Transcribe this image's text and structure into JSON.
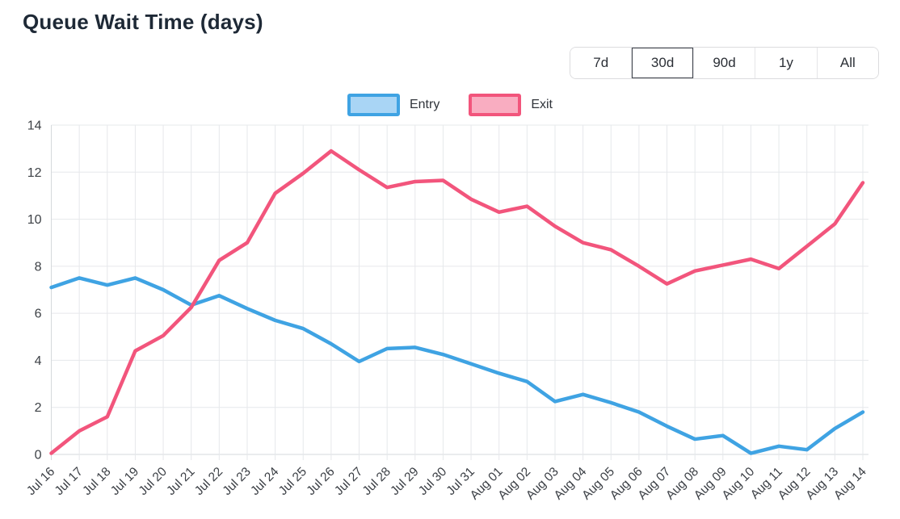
{
  "header": {
    "title": "Queue Wait Time (days)"
  },
  "controls": {
    "ranges": [
      {
        "label": "7d",
        "selected": false
      },
      {
        "label": "30d",
        "selected": true
      },
      {
        "label": "90d",
        "selected": false
      },
      {
        "label": "1y",
        "selected": false
      },
      {
        "label": "All",
        "selected": false
      }
    ]
  },
  "chart_data": {
    "type": "line",
    "title": "Queue Wait Time (days)",
    "xlabel": "",
    "ylabel": "",
    "ylim": [
      0,
      14
    ],
    "yticks": [
      0,
      2,
      4,
      6,
      8,
      10,
      12,
      14
    ],
    "grid": true,
    "legend_position": "top",
    "categories": [
      "Jul 16",
      "Jul 17",
      "Jul 18",
      "Jul 19",
      "Jul 20",
      "Jul 21",
      "Jul 22",
      "Jul 23",
      "Jul 24",
      "Jul 25",
      "Jul 26",
      "Jul 27",
      "Jul 28",
      "Jul 29",
      "Jul 30",
      "Jul 31",
      "Aug 01",
      "Aug 02",
      "Aug 03",
      "Aug 04",
      "Aug 05",
      "Aug 06",
      "Aug 07",
      "Aug 08",
      "Aug 09",
      "Aug 10",
      "Aug 11",
      "Aug 12",
      "Aug 13",
      "Aug 14"
    ],
    "series": [
      {
        "name": "Entry",
        "color": "#3fa3e3",
        "fill": "#a9d5f5",
        "values": [
          7.1,
          7.5,
          7.2,
          7.5,
          7.0,
          6.35,
          6.75,
          6.2,
          5.7,
          5.35,
          4.7,
          3.95,
          4.5,
          4.55,
          4.25,
          3.85,
          3.45,
          3.1,
          2.25,
          2.55,
          2.2,
          1.8,
          1.2,
          0.65,
          0.8,
          0.05,
          0.35,
          0.2,
          1.1,
          1.8
        ]
      },
      {
        "name": "Exit",
        "color": "#f2557c",
        "fill": "#f9adc1",
        "values": [
          0.05,
          1.0,
          1.6,
          4.4,
          5.05,
          6.25,
          8.25,
          9.0,
          11.1,
          11.95,
          12.9,
          12.1,
          11.35,
          11.6,
          11.65,
          10.85,
          10.3,
          10.55,
          9.7,
          9.0,
          8.7,
          8.0,
          7.25,
          7.8,
          8.05,
          8.3,
          7.9,
          8.85,
          9.8,
          11.55
        ]
      }
    ]
  }
}
